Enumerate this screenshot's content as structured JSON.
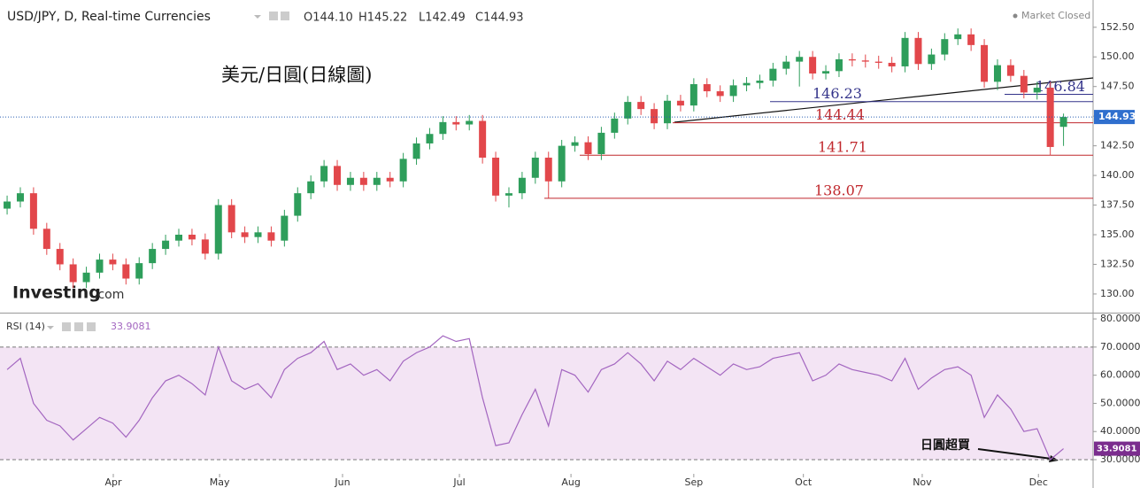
{
  "chart_data": [
    {
      "type": "candlestick",
      "title": "USD/JPY, D, Real-time Currencies",
      "ohlc_text": [
        "O144.10",
        "H145.22",
        "L142.49",
        "C144.93"
      ],
      "status": "Market Closed",
      "annotation": "美元/日圓(日線圖)",
      "logo": [
        "Investing",
        ".com"
      ],
      "up_color": "#2e9e5b",
      "down_color": "#e2474b",
      "x": [
        0,
        1,
        2,
        3,
        4,
        5,
        6,
        7,
        8,
        9,
        10,
        11,
        12,
        13,
        14,
        15,
        16,
        17,
        18,
        19,
        20,
        21,
        22,
        23,
        24,
        25,
        26,
        27,
        28,
        29,
        30,
        31,
        32,
        33,
        34,
        35,
        36,
        37,
        38,
        39,
        40,
        41,
        42,
        43,
        44,
        45,
        46,
        47,
        48,
        49,
        50,
        51,
        52,
        53,
        54,
        55,
        56,
        57,
        58,
        59,
        60,
        61,
        62,
        63,
        64,
        65,
        66,
        67,
        68,
        69,
        70,
        71,
        72,
        73,
        74,
        75,
        76,
        77,
        78,
        79,
        80
      ],
      "open": [
        137.2,
        137.8,
        138.5,
        135.5,
        133.8,
        132.5,
        131,
        131.8,
        132.9,
        132.5,
        131.3,
        132.6,
        133.8,
        134.5,
        135,
        134.6,
        133.4,
        137.5,
        135.2,
        134.8,
        135.2,
        134.5,
        136.6,
        138.5,
        139.5,
        140.8,
        139.2,
        139.8,
        139.2,
        139.8,
        139.5,
        141.4,
        142.7,
        143.5,
        144.5,
        144.3,
        144.6,
        141.5,
        138.3,
        138.5,
        139.8,
        141.5,
        139.5,
        142.5,
        142.8,
        141.8,
        143.6,
        144.8,
        146.2,
        145.6,
        144.4,
        146.3,
        145.9,
        147.7,
        147.1,
        146.7,
        147.6,
        147.8,
        148,
        149,
        149.6,
        150,
        148.6,
        148.8,
        149.8,
        149.7,
        149.6,
        149.5,
        149.2,
        151.6,
        149.4,
        150.2,
        151.5,
        151.9,
        151,
        147.9,
        149.3,
        148.4,
        147,
        147.4,
        144.1
      ],
      "high": [
        138.3,
        139,
        139,
        136,
        134.3,
        133,
        132.3,
        133.4,
        133.4,
        133,
        133.1,
        134.3,
        135,
        135.5,
        135.5,
        135.1,
        138,
        138,
        135.7,
        135.7,
        135.7,
        137.1,
        139,
        140,
        141.3,
        141.3,
        140.3,
        140.3,
        140.3,
        140.3,
        141.9,
        143.2,
        144,
        145,
        145,
        145.1,
        145.1,
        142,
        139,
        140.3,
        142,
        142,
        143,
        143.3,
        143.3,
        144.1,
        145.3,
        146.7,
        146.7,
        146.1,
        146.8,
        146.8,
        148.2,
        148.2,
        147.6,
        148.1,
        148.3,
        148.5,
        149.5,
        150.1,
        150.5,
        150.5,
        149.3,
        150.3,
        150.3,
        150.2,
        150.1,
        150,
        152.1,
        152.1,
        150.7,
        152,
        152.4,
        152.4,
        151.5,
        149.8,
        149.8,
        148.9,
        147.9,
        147.9,
        145.22
      ],
      "low": [
        136.7,
        137.3,
        135,
        133.3,
        132,
        130.5,
        130.5,
        131.3,
        132,
        130.8,
        130.8,
        132.1,
        133.3,
        134,
        134.1,
        132.9,
        132.9,
        134.7,
        134.3,
        134.3,
        134,
        134,
        136.1,
        138,
        139,
        138.7,
        138.7,
        138.7,
        138.7,
        139,
        139,
        140.9,
        142.2,
        143,
        143.8,
        143.8,
        141,
        137.8,
        137.3,
        138,
        139.3,
        138.1,
        139,
        142,
        141.3,
        141.3,
        143.1,
        144.3,
        145.1,
        143.9,
        143.9,
        145.4,
        145.4,
        146.6,
        146.2,
        146.2,
        147.1,
        147.3,
        147.5,
        148.5,
        147.5,
        148.1,
        148.1,
        148.3,
        149.2,
        149.1,
        149,
        148.7,
        148.7,
        148.9,
        148.9,
        149.7,
        151,
        150.5,
        147.4,
        147.2,
        147.9,
        146.5,
        146.4,
        141.7,
        142.49
      ],
      "close": [
        137.8,
        138.5,
        135.5,
        133.8,
        132.5,
        131,
        131.8,
        132.9,
        132.5,
        131.3,
        132.6,
        133.8,
        134.5,
        135,
        134.6,
        133.4,
        137.5,
        135.2,
        134.8,
        135.2,
        134.5,
        136.6,
        138.5,
        139.5,
        140.8,
        139.2,
        139.8,
        139.2,
        139.8,
        139.5,
        141.4,
        142.7,
        143.5,
        144.5,
        144.3,
        144.6,
        141.5,
        138.3,
        138.5,
        139.8,
        141.5,
        139.5,
        142.5,
        142.8,
        141.8,
        143.6,
        144.8,
        146.2,
        145.6,
        144.4,
        146.3,
        145.9,
        147.7,
        147.1,
        146.7,
        147.6,
        147.8,
        148,
        149,
        149.6,
        150,
        148.6,
        148.8,
        149.8,
        149.7,
        149.6,
        149.5,
        149.2,
        151.6,
        149.4,
        150.2,
        151.5,
        151.9,
        151,
        147.9,
        149.3,
        148.4,
        147,
        147.4,
        142.4,
        144.93
      ],
      "levels": {
        "values": [
          146.84,
          146.23,
          144.44,
          141.71,
          138.07
        ],
        "colors": [
          "#33338a",
          "#33338a",
          "#c0282d",
          "#c0282d",
          "#c0282d"
        ]
      },
      "xlim": [
        -0.54,
        82.24
      ],
      "ylim": [
        128.5,
        154.8
      ],
      "yticks": [
        {
          "value": 130,
          "label": "130.00"
        },
        {
          "value": 132.5,
          "label": "132.50"
        },
        {
          "value": 135,
          "label": "135.00"
        },
        {
          "value": 137.5,
          "label": "137.50"
        },
        {
          "value": 140,
          "label": "140.00"
        },
        {
          "value": 142.5,
          "label": "142.50"
        },
        {
          "value": 145,
          "label": "145.00"
        },
        {
          "value": 147.5,
          "label": "147.50"
        },
        {
          "value": 150,
          "label": "150.00"
        },
        {
          "value": 152.5,
          "label": "152.50"
        }
      ]
    },
    {
      "type": "line",
      "title": "RSI (14)",
      "color": "#a366c0",
      "band": [
        30,
        70
      ],
      "band_color": "#f3e4f4",
      "annotation": "日圓超買",
      "x": [
        0,
        1,
        2,
        3,
        4,
        5,
        6,
        7,
        8,
        9,
        10,
        11,
        12,
        13,
        14,
        15,
        16,
        17,
        18,
        19,
        20,
        21,
        22,
        23,
        24,
        25,
        26,
        27,
        28,
        29,
        30,
        31,
        32,
        33,
        34,
        35,
        36,
        37,
        38,
        39,
        40,
        41,
        42,
        43,
        44,
        45,
        46,
        47,
        48,
        49,
        50,
        51,
        52,
        53,
        54,
        55,
        56,
        57,
        58,
        59,
        60,
        61,
        62,
        63,
        64,
        65,
        66,
        67,
        68,
        69,
        70,
        71,
        72,
        73,
        74,
        75,
        76,
        77,
        78,
        79,
        80
      ],
      "values": [
        62,
        66,
        50,
        44,
        42,
        37,
        41,
        45,
        43,
        38,
        44,
        52,
        58,
        60,
        57,
        53,
        70,
        58,
        55,
        57,
        52,
        62,
        66,
        68,
        72,
        62,
        64,
        60,
        62,
        58,
        65,
        68,
        70,
        74,
        72,
        73,
        52,
        35,
        36,
        46,
        55,
        42,
        62,
        60,
        54,
        62,
        64,
        68,
        64,
        58,
        65,
        62,
        66,
        63,
        60,
        64,
        62,
        63,
        66,
        67,
        68,
        58,
        60,
        64,
        62,
        61,
        60,
        58,
        66,
        55,
        59,
        62,
        63,
        60,
        45,
        53,
        48,
        40,
        41,
        30,
        33.9081
      ],
      "xlim": [
        -0.54,
        82.24
      ],
      "ylim": [
        25.6,
        81.6
      ],
      "yticks": [
        {
          "value": 30,
          "label": "30.0000"
        },
        {
          "value": 40,
          "label": "40.0000"
        },
        {
          "value": 50,
          "label": "50.0000"
        },
        {
          "value": 60,
          "label": "60.0000"
        },
        {
          "value": 70,
          "label": "70.0000"
        },
        {
          "value": 80,
          "label": "80.0000"
        }
      ],
      "xticks": [
        {
          "value": 8.04,
          "label": "Apr"
        },
        {
          "value": 16.09,
          "label": "May"
        },
        {
          "value": 25.4,
          "label": "Jun"
        },
        {
          "value": 34.25,
          "label": "Jul"
        },
        {
          "value": 42.7,
          "label": "Aug"
        },
        {
          "value": 52.0,
          "label": "Sep"
        },
        {
          "value": 60.3,
          "label": "Oct"
        },
        {
          "value": 69.3,
          "label": "Nov"
        },
        {
          "value": 78.1,
          "label": "Dec"
        }
      ]
    }
  ]
}
